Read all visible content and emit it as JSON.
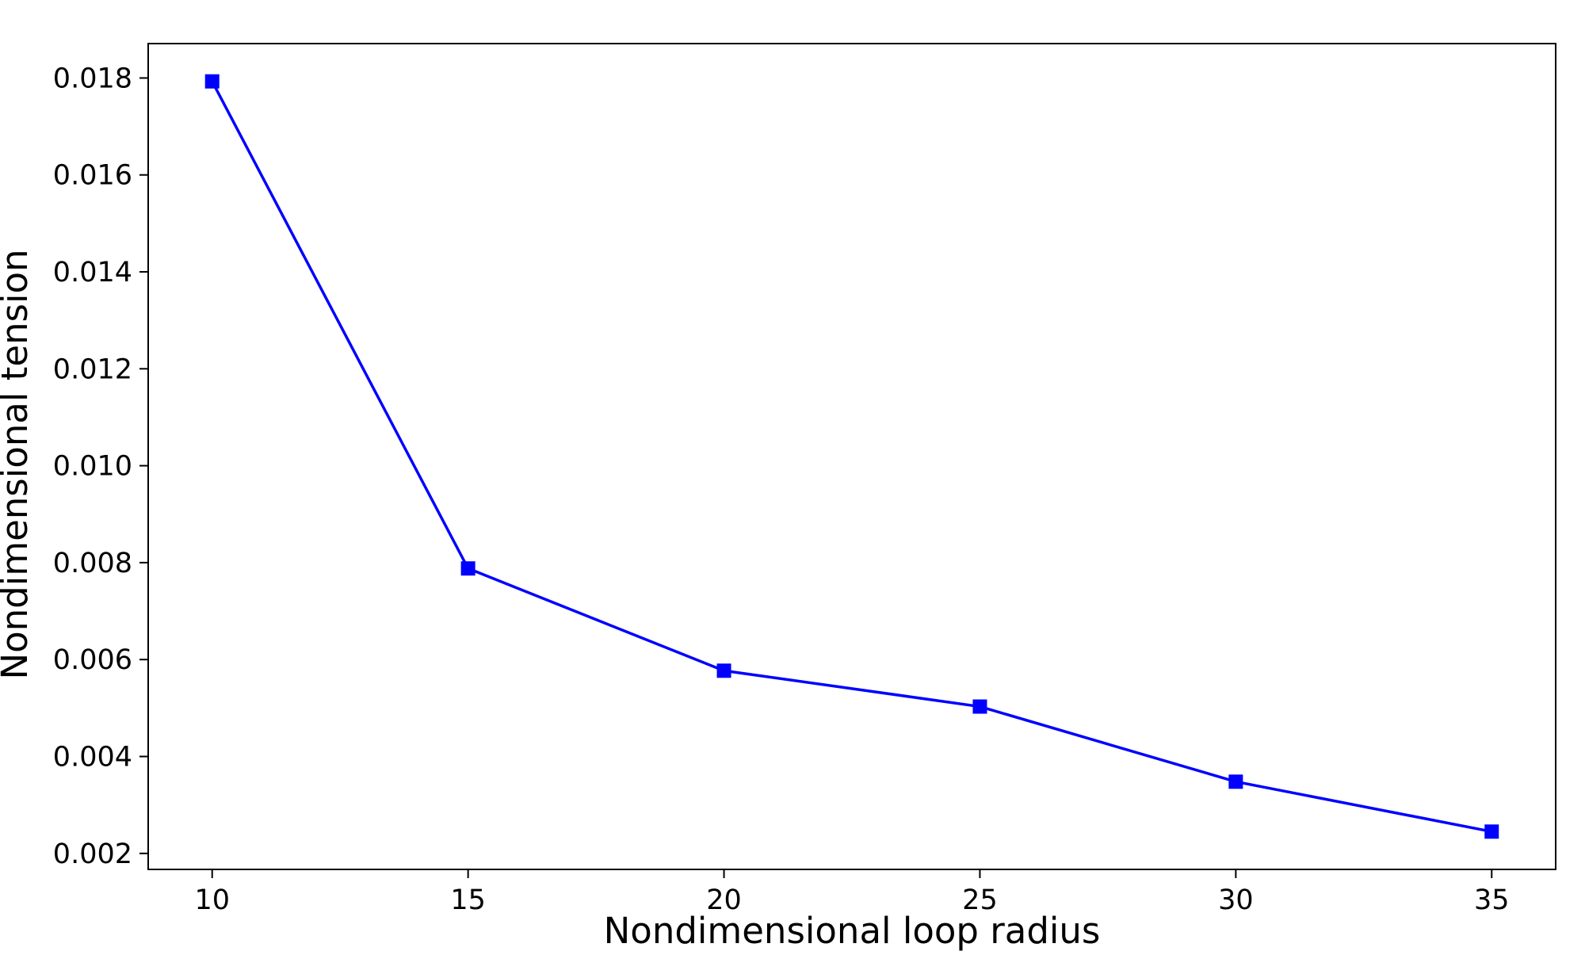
{
  "colors": {
    "series": "#0000ff",
    "axes": "#000000",
    "background": "#ffffff"
  },
  "chart_data": {
    "type": "line",
    "title": "",
    "xlabel": "Nondimensional loop radius",
    "ylabel": "Nondimensional tension",
    "xlim": [
      8.75,
      36.25
    ],
    "ylim": [
      0.00167,
      0.01871
    ],
    "grid": false,
    "marker": "square",
    "x_ticks": [
      10,
      15,
      20,
      25,
      30,
      35
    ],
    "x_tick_labels": [
      "10",
      "15",
      "20",
      "25",
      "30",
      "35"
    ],
    "y_ticks": [
      0.002,
      0.004,
      0.006,
      0.008,
      0.01,
      0.012,
      0.014,
      0.016,
      0.018
    ],
    "y_tick_labels": [
      "0.002",
      "0.004",
      "0.006",
      "0.008",
      "0.010",
      "0.012",
      "0.014",
      "0.016",
      "0.018"
    ],
    "series": [
      {
        "x": [
          10,
          15,
          20,
          25,
          30,
          35
        ],
        "y": [
          0.01793,
          0.00788,
          0.00577,
          0.00503,
          0.00348,
          0.00245
        ]
      }
    ]
  }
}
